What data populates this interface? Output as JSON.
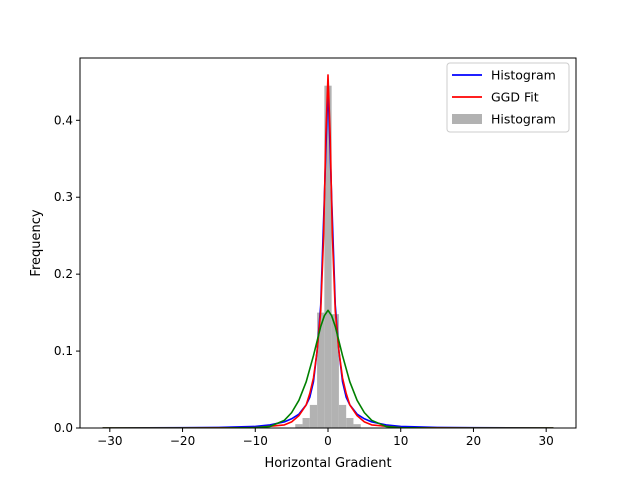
{
  "chart_data": {
    "type": "line",
    "title": "",
    "xlabel": "Horizontal Gradient",
    "ylabel": "Frequency",
    "xlim": [
      -34.1,
      34.1
    ],
    "ylim": [
      0,
      0.481
    ],
    "x_ticks": [
      -30,
      -20,
      -10,
      0,
      10,
      20,
      30
    ],
    "x_tick_labels": [
      "−30",
      "−20",
      "−10",
      "0",
      "10",
      "20",
      "30"
    ],
    "y_ticks": [
      0.0,
      0.1,
      0.2,
      0.3,
      0.4
    ],
    "y_tick_labels": [
      "0.0",
      "0.1",
      "0.2",
      "0.3",
      "0.4"
    ],
    "grid": false,
    "legend_position": "upper right",
    "legend": [
      {
        "label": "Histogram",
        "kind": "line",
        "color": "#0000ff"
      },
      {
        "label": "GGD Fit",
        "kind": "line",
        "color": "#ff0000"
      },
      {
        "label": "Histogram",
        "kind": "patch",
        "color": "#b2b2b2"
      }
    ],
    "histogram": {
      "color": "#b2b2b2",
      "bins": [
        {
          "x0": -4.5,
          "x1": -3.5,
          "value": 0.005
        },
        {
          "x0": -3.5,
          "x1": -2.5,
          "value": 0.013
        },
        {
          "x0": -2.5,
          "x1": -1.5,
          "value": 0.03
        },
        {
          "x0": -1.5,
          "x1": -0.5,
          "value": 0.15
        },
        {
          "x0": -0.5,
          "x1": 0.5,
          "value": 0.445
        },
        {
          "x0": 0.5,
          "x1": 1.5,
          "value": 0.148
        },
        {
          "x0": 1.5,
          "x1": 2.5,
          "value": 0.03
        },
        {
          "x0": 2.5,
          "x1": 3.5,
          "value": 0.013
        },
        {
          "x0": 3.5,
          "x1": 4.5,
          "value": 0.005
        }
      ]
    },
    "series": [
      {
        "name": "Histogram",
        "color": "#0000ff",
        "x": [
          -31,
          -25,
          -20,
          -15,
          -10,
          -8,
          -6,
          -5,
          -4,
          -3,
          -2.5,
          -2,
          -1.5,
          -1,
          -0.5,
          0,
          0.5,
          1,
          1.5,
          2,
          2.5,
          3,
          4,
          5,
          6,
          8,
          10,
          15,
          20,
          25,
          31
        ],
        "y": [
          0.0,
          0.0002,
          0.0004,
          0.0008,
          0.002,
          0.004,
          0.008,
          0.012,
          0.018,
          0.03,
          0.04,
          0.06,
          0.1,
          0.16,
          0.3,
          0.445,
          0.3,
          0.16,
          0.1,
          0.06,
          0.04,
          0.03,
          0.018,
          0.012,
          0.008,
          0.004,
          0.002,
          0.0008,
          0.0004,
          0.0002,
          0.0
        ]
      },
      {
        "name": "GGD Fit",
        "color": "#ff0000",
        "x": [
          -31,
          -20,
          -10,
          -6,
          -5,
          -4,
          -3,
          -2.5,
          -2,
          -1.5,
          -1,
          -0.6,
          -0.3,
          0,
          0.3,
          0.6,
          1,
          1.5,
          2,
          2.5,
          3,
          4,
          5,
          6,
          10,
          20,
          31
        ],
        "y": [
          0.0,
          0.0,
          0.0005,
          0.004,
          0.008,
          0.016,
          0.03,
          0.045,
          0.065,
          0.1,
          0.152,
          0.25,
          0.38,
          0.459,
          0.38,
          0.25,
          0.152,
          0.1,
          0.065,
          0.045,
          0.03,
          0.016,
          0.008,
          0.004,
          0.0005,
          0.0,
          0.0
        ]
      },
      {
        "name": "",
        "color": "#008000",
        "x": [
          -31,
          -15,
          -10,
          -8,
          -6,
          -5,
          -4,
          -3,
          -2,
          -1.5,
          -1,
          -0.5,
          0,
          0.5,
          1,
          1.5,
          2,
          3,
          4,
          5,
          6,
          8,
          10,
          15,
          31
        ],
        "y": [
          0.0,
          0.0,
          0.0005,
          0.002,
          0.01,
          0.02,
          0.036,
          0.06,
          0.094,
          0.113,
          0.132,
          0.146,
          0.153,
          0.146,
          0.132,
          0.113,
          0.094,
          0.06,
          0.036,
          0.02,
          0.01,
          0.002,
          0.0005,
          0.0,
          0.0
        ]
      }
    ]
  }
}
